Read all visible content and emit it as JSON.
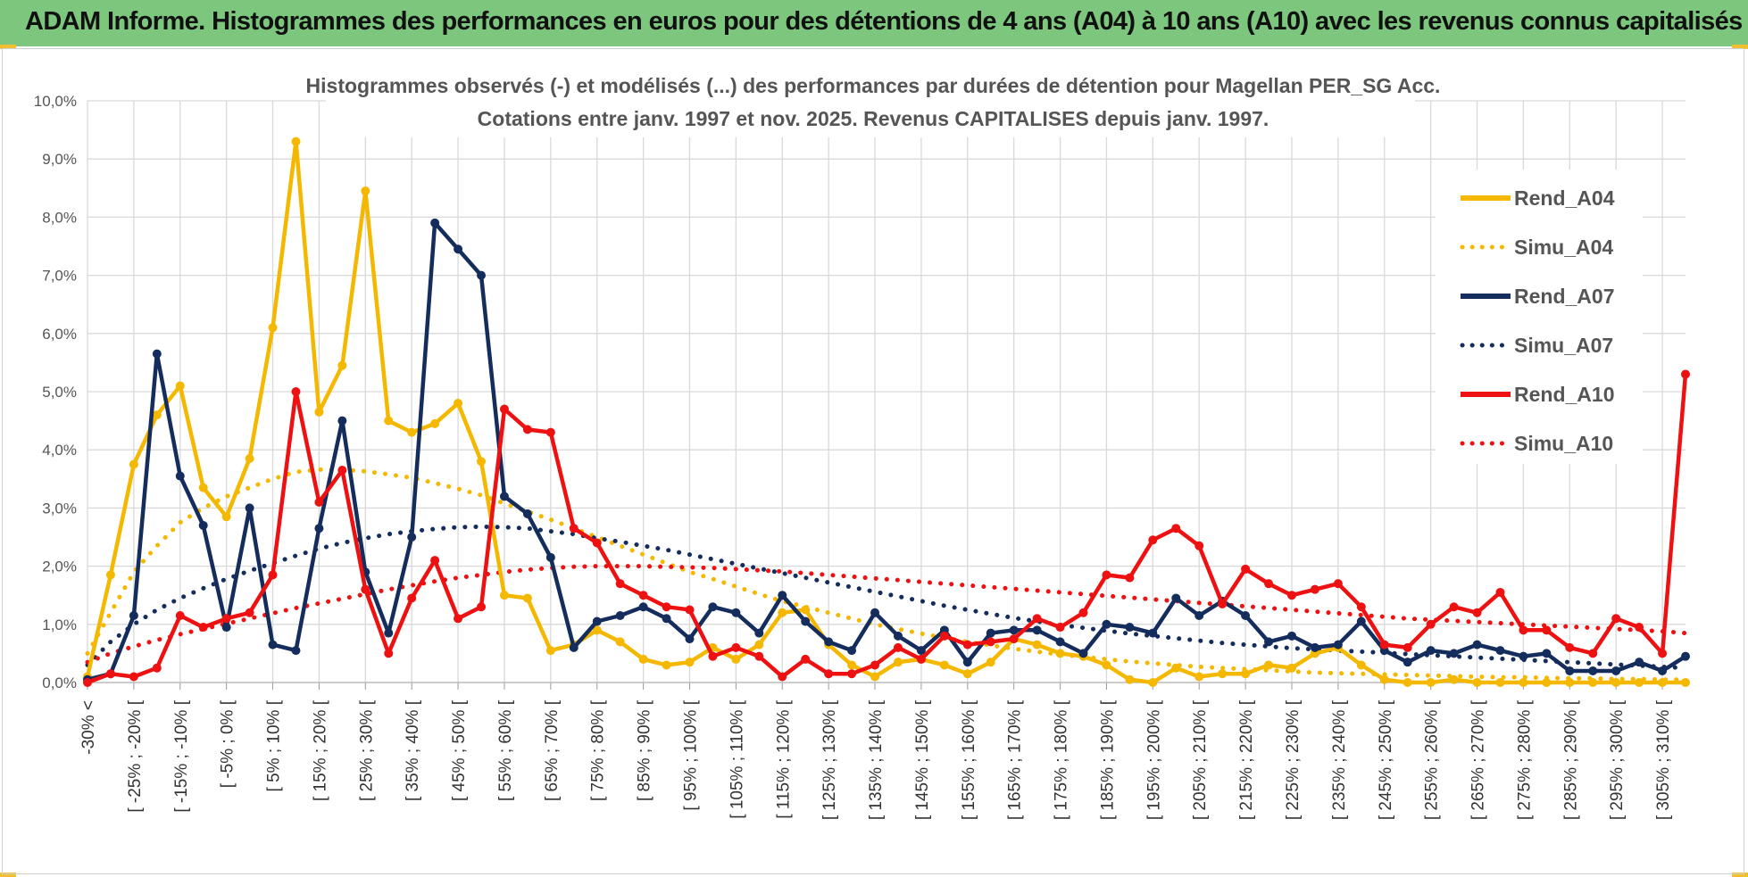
{
  "banner": {
    "title": "ADAM Informe. Histogrammes des performances en euros pour des détentions de 4 ans (A04) à 10 ans (A10) avec les revenus connus capitalisés",
    "background": "#7dc67d",
    "corner_color": "#f0c030"
  },
  "chart_data": {
    "type": "line",
    "title": "Histogrammes observés (-) et modélisés (...) des performances par durées de détention pour Magellan PER_SG Acc.",
    "subtitle": "Cotations entre janv. 1997 et nov. 2025. Revenus CAPITALISES depuis janv. 1997.",
    "xlabel": "",
    "ylabel": "",
    "ylim": [
      0,
      10
    ],
    "y_ticks": [
      "0,0%",
      "1,0%",
      "2,0%",
      "3,0%",
      "4,0%",
      "5,0%",
      "6,0%",
      "7,0%",
      "8,0%",
      "9,0%",
      "10,0%"
    ],
    "grid": true,
    "legend_position": "right",
    "x_tick_labels": [
      "-30% <",
      "[ -25% ; -20% [",
      "[ -15% ; -10% [",
      "[ -5% ; 0% [",
      "[ 5% ; 10% [",
      "[ 15% ; 20% [",
      "[ 25% ; 30% [",
      "[ 35% ; 40% [",
      "[ 45% ; 50% [",
      "[ 55% ; 60% [",
      "[ 65% ; 70% [",
      "[ 75% ; 80% [",
      "[ 85% ; 90% [",
      "[ 95% ; 100% [",
      "[ 105% ; 110% [",
      "[ 115% ; 120% [",
      "[ 125% ; 130% [",
      "[ 135% ; 140% [",
      "[ 145% ; 150% [",
      "[ 155% ; 160% [",
      "[ 165% ; 170% [",
      "[ 175% ; 180% [",
      "[ 185% ; 190% [",
      "[ 195% ; 200% [",
      "[ 205% ; 210% [",
      "[ 215% ; 220% [",
      "[ 225% ; 230% [",
      "[ 235% ; 240% [",
      "[ 245% ; 250% [",
      "[ 255% ; 260% [",
      "[ 265% ; 270% [",
      "[ 275% ; 280% [",
      "[ 285% ; 290% [",
      "[ 295% ; 300% [",
      "[ 305% ; 310% ["
    ],
    "n_points": 70,
    "series": [
      {
        "name": "Rend_A04",
        "style": "solid",
        "color": "#f5b800",
        "values": [
          0.1,
          1.85,
          3.75,
          4.6,
          5.1,
          3.35,
          2.85,
          3.85,
          6.1,
          9.3,
          4.65,
          5.45,
          8.45,
          4.5,
          4.3,
          4.45,
          4.8,
          3.8,
          1.5,
          1.45,
          0.55,
          0.65,
          0.9,
          0.7,
          0.4,
          0.3,
          0.35,
          0.6,
          0.4,
          0.65,
          1.2,
          1.25,
          0.65,
          0.3,
          0.1,
          0.35,
          0.4,
          0.3,
          0.15,
          0.35,
          0.75,
          0.65,
          0.5,
          0.45,
          0.3,
          0.05,
          0.0,
          0.25,
          0.1,
          0.15,
          0.15,
          0.3,
          0.25,
          0.5,
          0.6,
          0.3,
          0.05,
          0.0,
          0.0,
          0.05,
          0.0,
          0.0,
          0.0,
          0.0,
          0.0,
          0.0,
          0.0,
          0.0,
          0.0,
          0.0
        ]
      },
      {
        "name": "Simu_A04",
        "style": "dotted",
        "color": "#f5b800",
        "values": [
          0.5,
          1.2,
          1.9,
          2.35,
          2.75,
          3.0,
          3.2,
          3.35,
          3.5,
          3.62,
          3.66,
          3.66,
          3.63,
          3.58,
          3.52,
          3.43,
          3.33,
          3.22,
          3.08,
          2.94,
          2.8,
          2.65,
          2.5,
          2.35,
          2.2,
          2.05,
          1.9,
          1.78,
          1.65,
          1.52,
          1.4,
          1.3,
          1.2,
          1.1,
          1.0,
          0.92,
          0.84,
          0.77,
          0.7,
          0.64,
          0.58,
          0.53,
          0.48,
          0.44,
          0.4,
          0.36,
          0.33,
          0.3,
          0.27,
          0.25,
          0.23,
          0.21,
          0.19,
          0.17,
          0.16,
          0.15,
          0.14,
          0.13,
          0.12,
          0.11,
          0.1,
          0.09,
          0.09,
          0.08,
          0.07,
          0.07,
          0.06,
          0.06,
          0.05,
          0.05
        ]
      },
      {
        "name": "Rend_A07",
        "style": "solid",
        "color": "#142d5c",
        "values": [
          0.05,
          0.15,
          1.15,
          5.65,
          3.55,
          2.7,
          0.95,
          3.0,
          0.65,
          0.55,
          2.65,
          4.5,
          1.9,
          0.85,
          2.5,
          7.9,
          7.45,
          7.0,
          3.2,
          2.9,
          2.15,
          0.6,
          1.05,
          1.15,
          1.3,
          1.1,
          0.75,
          1.3,
          1.2,
          0.85,
          1.5,
          1.05,
          0.7,
          0.55,
          1.2,
          0.8,
          0.55,
          0.9,
          0.35,
          0.85,
          0.9,
          0.9,
          0.7,
          0.5,
          1.0,
          0.95,
          0.85,
          1.45,
          1.15,
          1.4,
          1.15,
          0.7,
          0.8,
          0.6,
          0.65,
          1.05,
          0.55,
          0.35,
          0.55,
          0.5,
          0.65,
          0.55,
          0.45,
          0.5,
          0.2,
          0.2,
          0.2,
          0.35,
          0.2,
          0.45
        ]
      },
      {
        "name": "Simu_A07",
        "style": "dotted",
        "color": "#142d5c",
        "values": [
          0.3,
          0.7,
          1.0,
          1.25,
          1.45,
          1.62,
          1.78,
          1.92,
          2.05,
          2.18,
          2.3,
          2.4,
          2.48,
          2.55,
          2.6,
          2.64,
          2.67,
          2.68,
          2.67,
          2.65,
          2.6,
          2.55,
          2.48,
          2.42,
          2.35,
          2.28,
          2.2,
          2.12,
          2.04,
          1.96,
          1.88,
          1.8,
          1.72,
          1.64,
          1.56,
          1.48,
          1.4,
          1.32,
          1.25,
          1.18,
          1.11,
          1.05,
          0.99,
          0.94,
          0.89,
          0.84,
          0.8,
          0.76,
          0.72,
          0.68,
          0.65,
          0.62,
          0.59,
          0.57,
          0.55,
          0.53,
          0.51,
          0.49,
          0.47,
          0.45,
          0.43,
          0.41,
          0.39,
          0.37,
          0.35,
          0.33,
          0.31,
          0.29,
          0.27,
          0.25
        ]
      },
      {
        "name": "Rend_A10",
        "style": "solid",
        "color": "#ee1111",
        "values": [
          0.0,
          0.15,
          0.1,
          0.25,
          1.15,
          0.95,
          1.1,
          1.2,
          1.85,
          5.0,
          3.1,
          3.65,
          1.6,
          0.5,
          1.45,
          2.1,
          1.1,
          1.3,
          4.7,
          4.35,
          4.3,
          2.65,
          2.4,
          1.7,
          1.5,
          1.3,
          1.25,
          0.45,
          0.6,
          0.45,
          0.1,
          0.4,
          0.15,
          0.15,
          0.3,
          0.6,
          0.4,
          0.8,
          0.65,
          0.7,
          0.75,
          1.1,
          0.95,
          1.2,
          1.85,
          1.8,
          2.45,
          2.65,
          2.35,
          1.35,
          1.95,
          1.7,
          1.5,
          1.6,
          1.7,
          1.3,
          0.65,
          0.6,
          1.0,
          1.3,
          1.2,
          1.55,
          0.9,
          0.9,
          0.6,
          0.5,
          1.1,
          0.95,
          0.5,
          5.3
        ]
      },
      {
        "name": "Simu_A10",
        "style": "dotted",
        "color": "#ee1111",
        "values": [
          0.35,
          0.5,
          0.62,
          0.73,
          0.83,
          0.92,
          1.01,
          1.1,
          1.19,
          1.28,
          1.36,
          1.44,
          1.52,
          1.6,
          1.67,
          1.74,
          1.8,
          1.85,
          1.9,
          1.94,
          1.97,
          1.99,
          2.0,
          2.0,
          2.0,
          1.99,
          1.98,
          1.97,
          1.95,
          1.93,
          1.91,
          1.88,
          1.85,
          1.82,
          1.79,
          1.76,
          1.73,
          1.7,
          1.67,
          1.64,
          1.61,
          1.58,
          1.55,
          1.52,
          1.49,
          1.46,
          1.43,
          1.4,
          1.37,
          1.34,
          1.31,
          1.28,
          1.25,
          1.22,
          1.19,
          1.16,
          1.13,
          1.1,
          1.08,
          1.06,
          1.04,
          1.02,
          1.0,
          0.98,
          0.96,
          0.94,
          0.92,
          0.9,
          0.88,
          0.85
        ]
      }
    ]
  }
}
